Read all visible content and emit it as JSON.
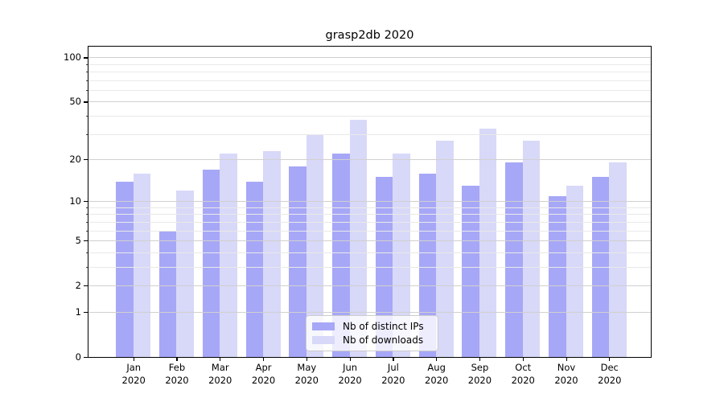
{
  "title": "grasp2db 2020",
  "chart_data": {
    "type": "bar",
    "categories": [
      "Jan",
      "Feb",
      "Mar",
      "Apr",
      "May",
      "Jun",
      "Jul",
      "Aug",
      "Sep",
      "Oct",
      "Nov",
      "Dec"
    ],
    "year": "2020",
    "series": [
      {
        "key": "distinct-ips",
        "name": "Nb of distinct IPs",
        "color": "#a7a7f7",
        "values": [
          14,
          6,
          17,
          14,
          18,
          22,
          15,
          16,
          13,
          19,
          11,
          15
        ]
      },
      {
        "key": "downloads",
        "name": "Nb of downloads",
        "color": "#d8d8f8",
        "values": [
          16,
          12,
          22,
          23,
          30,
          38,
          22,
          27,
          33,
          27,
          13,
          19
        ]
      }
    ],
    "xlabel": "",
    "ylabel": "",
    "yscale": "log1p",
    "ylim": [
      0,
      119
    ],
    "yticks_major": [
      0,
      1,
      2,
      5,
      10,
      20,
      50,
      100
    ],
    "yticks_minor": [
      3,
      4,
      6,
      7,
      8,
      9,
      30,
      40,
      60,
      70,
      80,
      90
    ],
    "grid": true,
    "legend_position": "lower center"
  }
}
